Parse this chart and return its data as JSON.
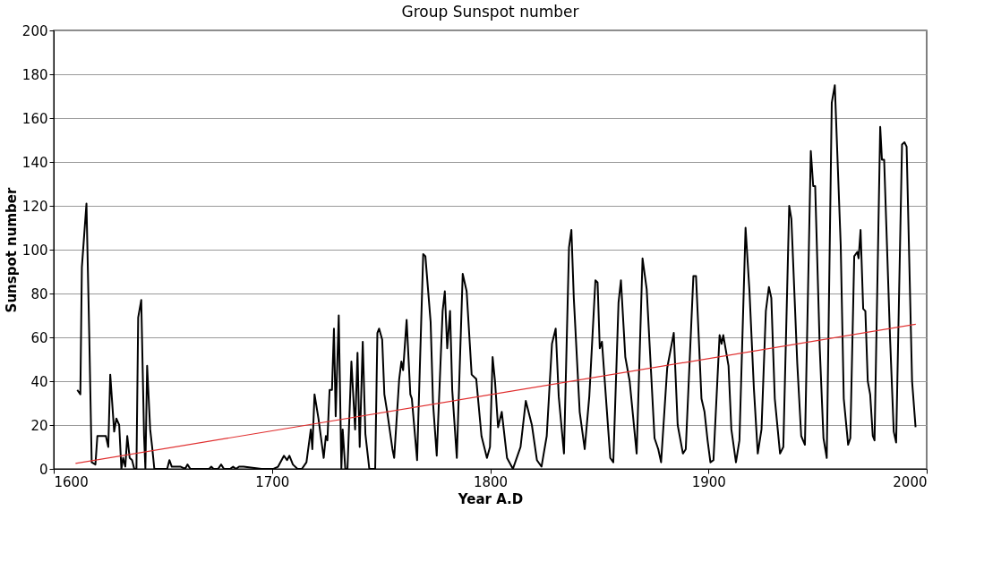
{
  "chart_data": {
    "type": "line",
    "title": "Group Sunspot number",
    "xlabel": "Year A.D",
    "ylabel": "Sunspot number",
    "xlim": [
      1600,
      2000
    ],
    "xticks": [
      1600,
      1700,
      1800,
      1900,
      2000
    ],
    "ylim": [
      0,
      200
    ],
    "yticks": [
      0,
      20,
      40,
      60,
      80,
      100,
      120,
      140,
      160,
      180,
      200
    ],
    "grid": "y",
    "marker": "none",
    "line_style": "solid",
    "series": [
      {
        "color": "#000000",
        "x": [
          1610.8,
          1612.2,
          1612.9,
          1615,
          1616.3,
          1617.4,
          1619.1,
          1620,
          1623.9,
          1625,
          1625.9,
          1627.7,
          1628.7,
          1630,
          1631,
          1631.8,
          1632.8,
          1633.7,
          1634.8,
          1635.9,
          1636.9,
          1637.9,
          1638.7,
          1640.1,
          1641.4,
          1642,
          1642.8,
          1644.2,
          1645.1,
          1646.1,
          1652,
          1653,
          1654.1,
          1658.2,
          1660.2,
          1661.3,
          1662.6,
          1671.2,
          1672.2,
          1673.2,
          1675.3,
          1676.7,
          1678,
          1680.8,
          1682.2,
          1683.5,
          1684.9,
          1687,
          1695.2,
          1700.7,
          1702.8,
          1705.5,
          1706.9,
          1708,
          1709.6,
          1711.7,
          1713.7,
          1715.8,
          1717.8,
          1718.5,
          1719.5,
          1721.3,
          1723.7,
          1724.7,
          1725.4,
          1726.4,
          1727.5,
          1728.4,
          1729.2,
          1730.6,
          1731.8,
          1732.4,
          1733.6,
          1734.6,
          1736.4,
          1738.1,
          1739.2,
          1740.2,
          1741.6,
          1742.8,
          1744.6,
          1747.3,
          1748.3,
          1749.1,
          1750.5,
          1751.5,
          1752.8,
          1755.2,
          1756,
          1758.3,
          1759.3,
          1760.1,
          1761.7,
          1763.4,
          1764.1,
          1766.5,
          1769.3,
          1770.3,
          1772.7,
          1773.8,
          1775.5,
          1778.2,
          1779.2,
          1780.3,
          1781.6,
          1782.6,
          1784.7,
          1787.4,
          1789.2,
          1791.5,
          1793.6,
          1796,
          1798.5,
          1799.9,
          1801.1,
          1802.2,
          1803.6,
          1805.3,
          1807.7,
          1810.4,
          1813.9,
          1816.3,
          1819.1,
          1821.4,
          1823.5,
          1825.9,
          1828.3,
          1830,
          1831.4,
          1833.8,
          1836.1,
          1837.2,
          1838.3,
          1841,
          1843.3,
          1845.4,
          1848.2,
          1849.2,
          1850.2,
          1851.2,
          1855,
          1856.4,
          1858.8,
          1859.9,
          1861.9,
          1863.9,
          1867.1,
          1869.8,
          1871.7,
          1875.3,
          1877,
          1878.3,
          1881.1,
          1884.1,
          1885.9,
          1888.3,
          1889.6,
          1893.1,
          1894.3,
          1896.8,
          1898.2,
          1899.6,
          1900.9,
          1902.3,
          1905.1,
          1906,
          1906.8,
          1909.2,
          1910.5,
          1912.6,
          1914.2,
          1917,
          1918.8,
          1920.8,
          1922.6,
          1924.3,
          1926.3,
          1927.7,
          1928.8,
          1930.4,
          1932.8,
          1934.3,
          1937,
          1938,
          1940.7,
          1942.5,
          1944.2,
          1946.9,
          1948,
          1948.9,
          1951,
          1952.7,
          1954.2,
          1956.5,
          1957.9,
          1960.6,
          1962,
          1964,
          1965,
          1966.8,
          1968.2,
          1968.8,
          1969.7,
          1970.9,
          1971.9,
          1973,
          1974.1,
          1975.3,
          1976.1,
          1978.7,
          1979.5,
          1980.5,
          1983.2,
          1984.9,
          1986,
          1988.7,
          1989.8,
          1990.8,
          1993.3,
          1994.9
        ],
        "values": [
          36,
          34,
          92,
          121,
          60,
          3,
          2,
          15,
          15,
          10,
          43,
          17,
          23,
          20,
          0,
          5,
          1,
          15,
          5,
          4,
          0,
          0,
          69,
          77,
          15,
          0,
          47,
          18,
          10,
          0,
          0,
          4,
          1,
          1,
          0,
          2,
          0,
          0,
          1,
          0,
          0,
          2,
          0,
          0,
          1,
          0,
          1,
          1,
          0,
          0,
          1,
          6,
          4,
          6,
          2,
          0,
          0,
          3,
          18,
          9,
          34,
          23,
          5,
          15,
          13,
          36,
          36,
          64,
          24,
          70,
          0,
          18,
          0,
          0,
          49,
          18,
          53,
          10,
          58,
          16,
          0,
          0,
          62,
          64,
          59,
          34,
          26,
          9,
          5,
          41,
          49,
          45,
          68,
          34,
          32,
          4,
          98,
          97,
          67,
          30,
          6,
          72,
          81,
          55,
          72,
          36,
          5,
          89,
          81,
          43,
          41,
          15,
          5,
          10,
          51,
          40,
          19,
          26,
          5,
          0,
          10,
          31,
          20,
          4,
          1,
          15,
          57,
          64,
          33,
          7,
          101,
          109,
          78,
          26,
          9,
          33,
          86,
          85,
          55,
          58,
          5,
          3,
          76,
          86,
          51,
          40,
          7,
          96,
          82,
          14,
          9,
          3,
          46,
          62,
          20,
          7,
          9,
          88,
          88,
          32,
          26,
          13,
          3,
          4,
          61,
          57,
          61,
          47,
          18,
          3,
          13,
          110,
          81,
          37,
          7,
          18,
          72,
          83,
          78,
          32,
          7,
          10,
          120,
          114,
          48,
          15,
          11,
          145,
          129,
          129,
          55,
          14,
          5,
          167,
          175,
          102,
          32,
          11,
          14,
          97,
          99,
          96,
          109,
          73,
          72,
          40,
          34,
          15,
          13,
          156,
          141,
          141,
          60,
          17,
          12,
          148,
          149,
          147,
          40,
          19
        ]
      },
      {
        "color": "#e03030",
        "x": [
          1610,
          1995
        ],
        "values": [
          2.5,
          66
        ]
      }
    ]
  }
}
